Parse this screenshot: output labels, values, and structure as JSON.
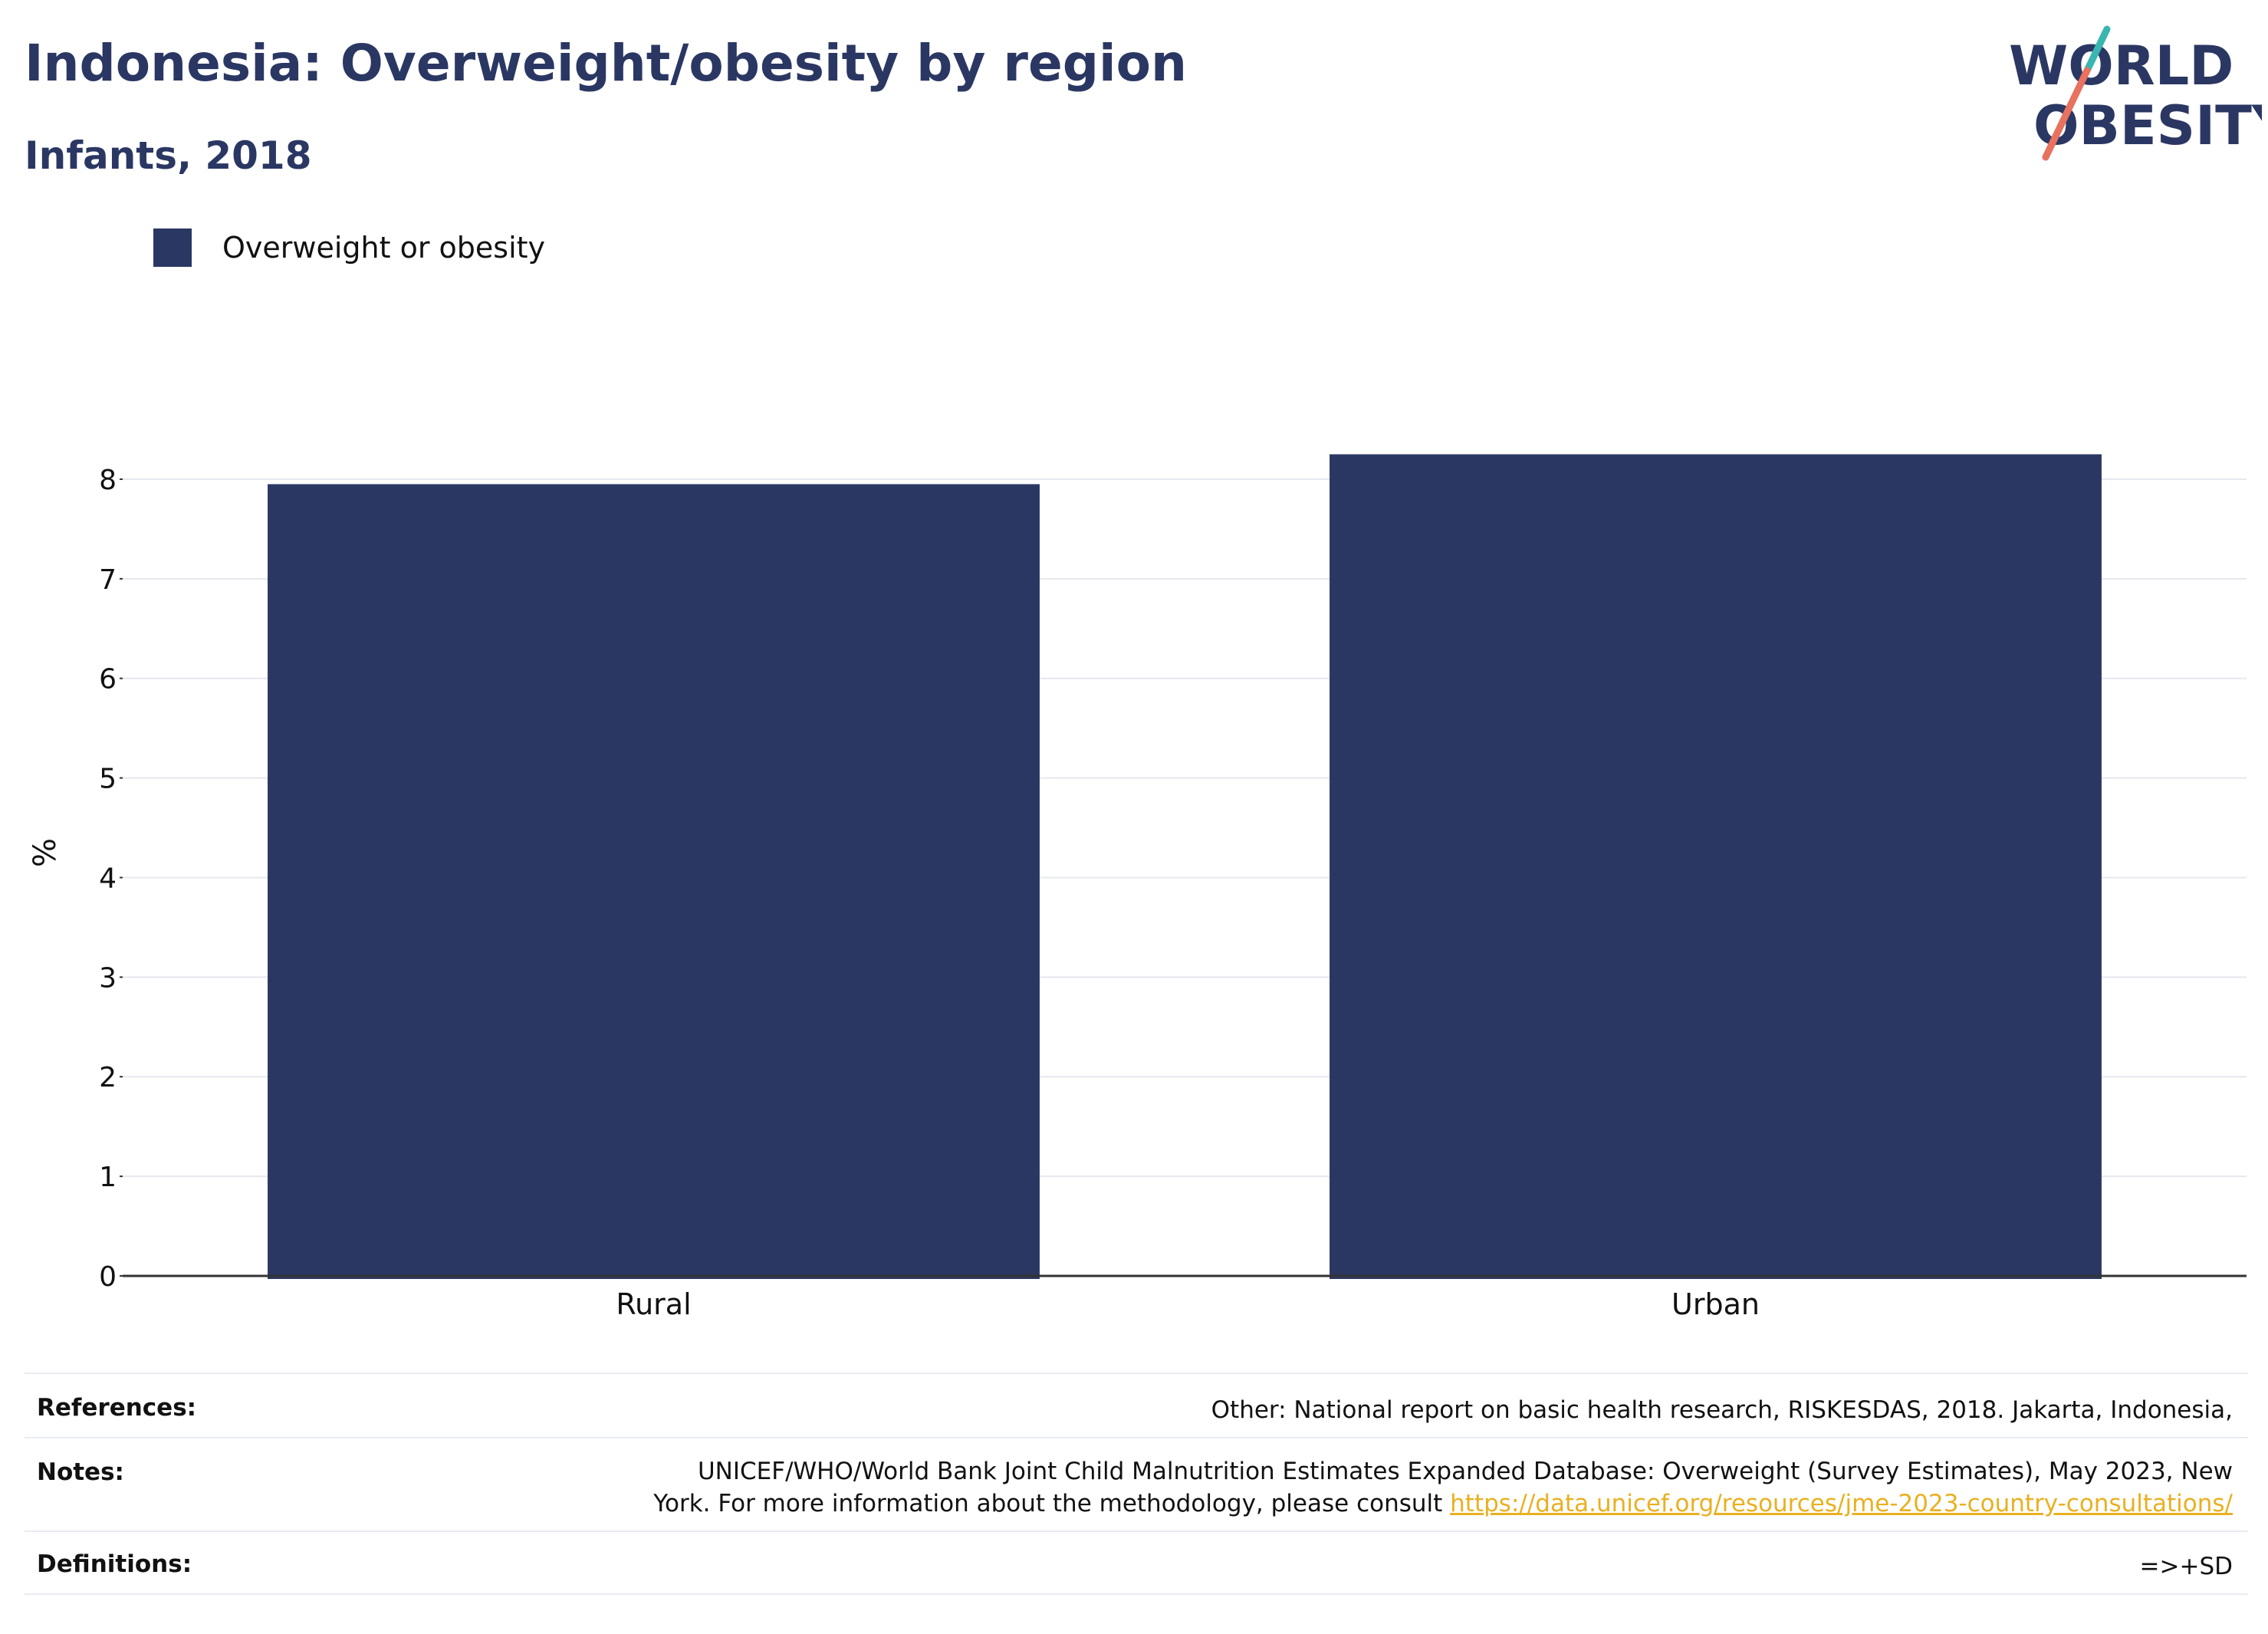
{
  "header": {
    "title": "Indonesia: Overweight/obesity by region",
    "subtitle": "Infants, 2018"
  },
  "logo": {
    "line1": "WORLD",
    "line2": "OBESITY",
    "text_color": "#2b3763",
    "slash_colors": [
      "#3ab6b0",
      "#e8715f"
    ]
  },
  "legend": {
    "items": [
      {
        "label": "Overweight or obesity",
        "color": "#2b3763"
      }
    ]
  },
  "chart_data": {
    "type": "bar",
    "categories": [
      "Rural",
      "Urban"
    ],
    "series": [
      {
        "name": "Overweight or obesity",
        "values": [
          7.95,
          8.25
        ],
        "color": "#2b3763"
      }
    ],
    "ylabel": "%",
    "xlabel": "",
    "ylim": [
      0,
      8.5
    ],
    "yticks": [
      0,
      1,
      2,
      3,
      4,
      5,
      6,
      7,
      8
    ],
    "grid": true
  },
  "footer": {
    "references_label": "References:",
    "references_text": "Other: National report on basic health research, RISKESDAS, 2018. Jakarta, Indonesia,",
    "notes_label": "Notes:",
    "notes_text_1": "UNICEF/WHO/World Bank Joint Child Malnutrition Estimates Expanded Database: Overweight (Survey Estimates), May 2023, New",
    "notes_text_2": "York. For more information about the methodology, please consult ",
    "notes_link": "https://data.unicef.org/resources/jme-2023-country-consultations/",
    "definitions_label": "Definitions:",
    "definitions_text": "=>+SD"
  }
}
